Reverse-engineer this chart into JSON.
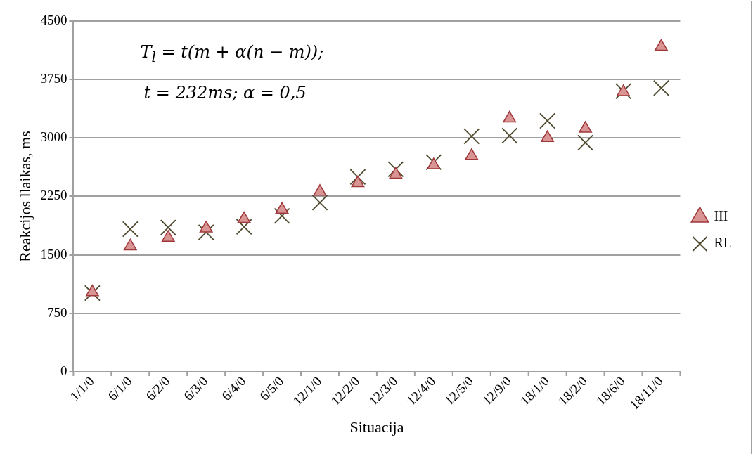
{
  "chart_data": {
    "type": "scatter",
    "xlabel": "Situacija",
    "ylabel": "Reakcijos llaikas, ms",
    "annotations": [
      "T$_{l}$ = t(m + α(n − m));",
      "t = 232ms; α = 0,5"
    ],
    "categories": [
      "1/1/0",
      "6/1/0",
      "6/2/0",
      "6/3/0",
      "6/4/0",
      "6/5/0",
      "12/1/0",
      "12/2/0",
      "12/3/0",
      "12/4/0",
      "12/5/0",
      "12/9/0",
      "18/1/0",
      "18/2/0",
      "18/6/0",
      "18/11/0"
    ],
    "series": [
      {
        "name": "III",
        "color": "#d99594",
        "marker": "triangle",
        "values": [
          1020,
          1610,
          1720,
          1840,
          1960,
          2080,
          2310,
          2420,
          2530,
          2650,
          2770,
          3250,
          3000,
          3120,
          3590,
          4170
        ]
      },
      {
        "name": "RL",
        "color": "#4f4a2e",
        "marker": "cross",
        "values": [
          1010,
          1830,
          1850,
          1790,
          1860,
          2000,
          2170,
          2500,
          2600,
          2690,
          3020,
          3030,
          3220,
          2940,
          3600,
          3640
        ]
      }
    ],
    "ylim": [
      0,
      4500
    ],
    "yticks": [
      0,
      750,
      1500,
      2250,
      3000,
      3750,
      4500
    ],
    "grid": "y",
    "legend": "right"
  }
}
